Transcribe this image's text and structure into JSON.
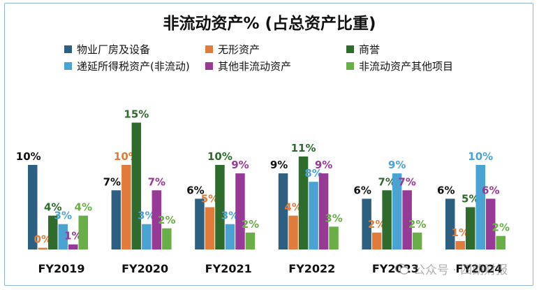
{
  "chart_data": {
    "type": "bar",
    "title": "非流动资产% (占总资产比重)",
    "categories": [
      "FY2019",
      "FY2020",
      "FY2021",
      "FY2022",
      "FY2023",
      "FY2024"
    ],
    "ylim": [
      0,
      16
    ],
    "grid": false,
    "legend_position": "top",
    "series": [
      {
        "name": "物业厂房及设备",
        "color": "#2d5f80",
        "values": [
          10,
          7,
          6,
          9,
          6,
          6
        ],
        "labels": [
          "10%",
          "7%",
          "6%",
          "9%",
          "6%",
          "6%"
        ],
        "label_color": "#111111"
      },
      {
        "name": "无形资产",
        "color": "#e07b3c",
        "values": [
          0.2,
          10,
          5,
          4,
          2,
          1
        ],
        "labels": [
          "0%",
          "10%",
          "5%",
          "4%",
          "2%",
          "1%"
        ],
        "label_color": "#e07b3c"
      },
      {
        "name": "商誉",
        "color": "#2e6b2c",
        "values": [
          4,
          15,
          10,
          11,
          7,
          5
        ],
        "labels": [
          "4%",
          "15%",
          "10%",
          "11%",
          "7%",
          "5%"
        ],
        "label_color": "#2e6b2c"
      },
      {
        "name": "递延所得税资产(非流动)",
        "color": "#4ba3d4",
        "values": [
          3,
          3,
          3,
          8,
          9,
          10
        ],
        "labels": [
          "3%",
          "3%",
          "3%",
          "8%",
          "9%",
          "10%"
        ],
        "label_color": "#4ba3d4"
      },
      {
        "name": "其他非流动资产",
        "color": "#973a95",
        "values": [
          0.6,
          7,
          9,
          9,
          7,
          6
        ],
        "labels": [
          "1%",
          "7%",
          "9%",
          "9%",
          "7%",
          "6%"
        ],
        "label_color": "#973a95"
      },
      {
        "name": "非流动资产其他项目",
        "color": "#6aae48",
        "values": [
          4,
          2.5,
          2,
          2.7,
          2,
          1.6
        ],
        "labels": [
          "4%",
          "2%",
          "2%",
          "3%",
          "2%",
          "2%"
        ],
        "label_color": "#6aae48"
      }
    ]
  },
  "watermark": {
    "text": "公众号 · 四朗财报",
    "icon": "wechat-icon",
    "color": "#8a8a8a"
  }
}
